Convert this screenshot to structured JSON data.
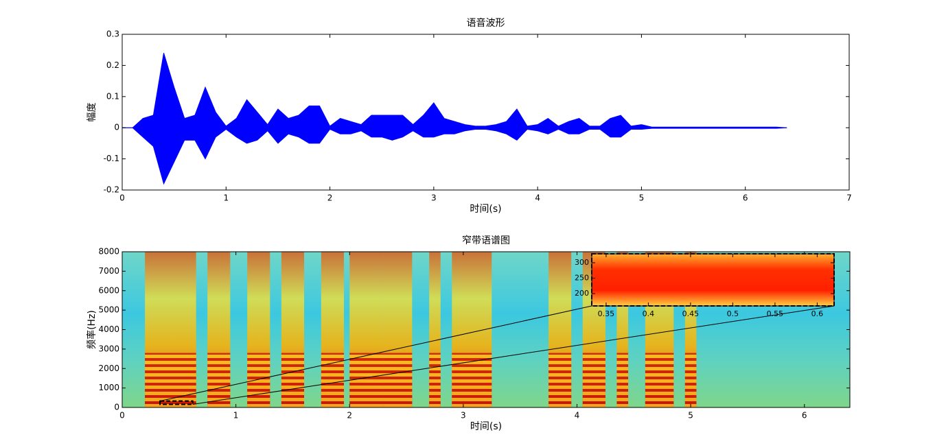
{
  "chart_data": [
    {
      "type": "waveform",
      "title": "语音波形",
      "xlabel": "时间(s)",
      "ylabel": "幅度",
      "xlim": [
        0,
        7
      ],
      "ylim": [
        -0.2,
        0.3
      ],
      "xticks": [
        0,
        1,
        2,
        3,
        4,
        5,
        6,
        7
      ],
      "yticks": [
        -0.2,
        -0.1,
        0,
        0.1,
        0.2,
        0.3
      ],
      "x": [
        0,
        0.1,
        0.2,
        0.3,
        0.4,
        0.5,
        0.6,
        0.7,
        0.8,
        0.9,
        1,
        1.1,
        1.2,
        1.3,
        1.4,
        1.5,
        1.6,
        1.7,
        1.8,
        1.9,
        2,
        2.1,
        2.2,
        2.3,
        2.4,
        2.5,
        2.6,
        2.7,
        2.8,
        2.9,
        3,
        3.1,
        3.2,
        3.3,
        3.4,
        3.5,
        3.6,
        3.7,
        3.8,
        3.9,
        4,
        4.1,
        4.2,
        4.3,
        4.4,
        4.5,
        4.6,
        4.7,
        4.8,
        4.9,
        5,
        5.1,
        5.2,
        5.3,
        5.4,
        5.5,
        5.6,
        5.7,
        5.8,
        5.9,
        6,
        6.1,
        6.2,
        6.3,
        6.4
      ],
      "series": [
        {
          "color": "#0000ff",
          "values": [
            0,
            0,
            0.03,
            0.04,
            0.24,
            0.13,
            0.03,
            0.04,
            0.13,
            0.05,
            0.005,
            0.03,
            0.09,
            0.05,
            0.01,
            0.06,
            0.03,
            0.04,
            0.07,
            0.07,
            0.005,
            0.03,
            0.02,
            0.01,
            0.04,
            0.04,
            0.04,
            0.04,
            0.01,
            0.04,
            0.08,
            0.03,
            0.02,
            0.01,
            0.005,
            0.005,
            0.01,
            0.02,
            0.06,
            0.005,
            0.01,
            0.03,
            0.005,
            0.02,
            0.03,
            0.005,
            0.005,
            0.03,
            0.04,
            0.005,
            0.01,
            0.002,
            0.002,
            0.002,
            0.002,
            0.002,
            0.002,
            0.002,
            0.002,
            0.002,
            0.002,
            0.002,
            0.002,
            0.002,
            0
          ]
        },
        {
          "color": "#0000ff",
          "values": [
            0,
            0,
            -0.03,
            -0.06,
            -0.18,
            -0.11,
            -0.04,
            -0.04,
            -0.1,
            -0.03,
            -0.005,
            -0.03,
            -0.05,
            -0.04,
            -0.01,
            -0.05,
            -0.02,
            -0.03,
            -0.05,
            -0.05,
            -0.005,
            -0.02,
            -0.02,
            -0.01,
            -0.03,
            -0.03,
            -0.04,
            -0.03,
            -0.01,
            -0.03,
            -0.03,
            -0.02,
            -0.02,
            -0.01,
            -0.005,
            -0.005,
            -0.01,
            -0.02,
            -0.04,
            -0.005,
            -0.01,
            -0.02,
            -0.005,
            -0.02,
            -0.02,
            -0.005,
            -0.005,
            -0.03,
            -0.03,
            -0.005,
            -0.005,
            -0.002,
            -0.002,
            -0.002,
            -0.002,
            -0.002,
            -0.002,
            -0.002,
            -0.002,
            -0.002,
            -0.002,
            -0.002,
            -0.002,
            -0.002,
            0
          ]
        }
      ]
    },
    {
      "type": "spectrogram",
      "title": "窄带语谱图",
      "xlabel": "时间(s)",
      "ylabel": "频率(Hz)",
      "xlim": [
        0,
        6.4
      ],
      "ylim": [
        0,
        8000
      ],
      "xticks": [
        0,
        1,
        2,
        3,
        4,
        5,
        6
      ],
      "yticks": [
        0,
        1000,
        2000,
        3000,
        4000,
        5000,
        6000,
        7000,
        8000
      ],
      "bands": [
        [
          0.2,
          0.65
        ],
        [
          0.75,
          0.95
        ],
        [
          1.1,
          1.3
        ],
        [
          1.4,
          1.6
        ],
        [
          1.75,
          1.95
        ],
        [
          2.0,
          2.3
        ],
        [
          2.3,
          2.55
        ],
        [
          2.7,
          2.8
        ],
        [
          2.9,
          3.25
        ],
        [
          3.75,
          3.95
        ],
        [
          4.05,
          4.25
        ],
        [
          4.35,
          4.45
        ],
        [
          4.6,
          4.85
        ],
        [
          4.95,
          5.05
        ]
      ]
    },
    {
      "type": "inset",
      "xlim": [
        0.333,
        0.62
      ],
      "ylim": [
        160,
        329
      ],
      "xticks": [
        0.35,
        0.4,
        0.45,
        0.5,
        0.55,
        0.6
      ],
      "yticks": [
        200,
        250,
        300
      ]
    }
  ]
}
